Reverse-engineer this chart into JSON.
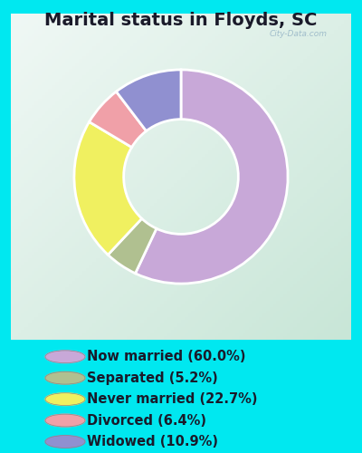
{
  "title": "Marital status in Floyds, SC",
  "slices": [
    {
      "label": "Now married (60.0%)",
      "value": 60.0,
      "color": "#c8a8d8"
    },
    {
      "label": "Separated (5.2%)",
      "value": 5.2,
      "color": "#b0c090"
    },
    {
      "label": "Never married (22.7%)",
      "value": 22.7,
      "color": "#f0f060"
    },
    {
      "label": "Divorced (6.4%)",
      "value": 6.4,
      "color": "#f0a0a8"
    },
    {
      "label": "Widowed (10.9%)",
      "value": 10.9,
      "color": "#9090d0"
    }
  ],
  "bg_outer": "#00e8f0",
  "bg_inner_tl": "#e8f8f0",
  "bg_inner_br": "#c8e8d0",
  "title_fontsize": 14,
  "legend_fontsize": 10.5,
  "watermark": "City-Data.com",
  "start_angle": 90,
  "donut_width": 0.38
}
